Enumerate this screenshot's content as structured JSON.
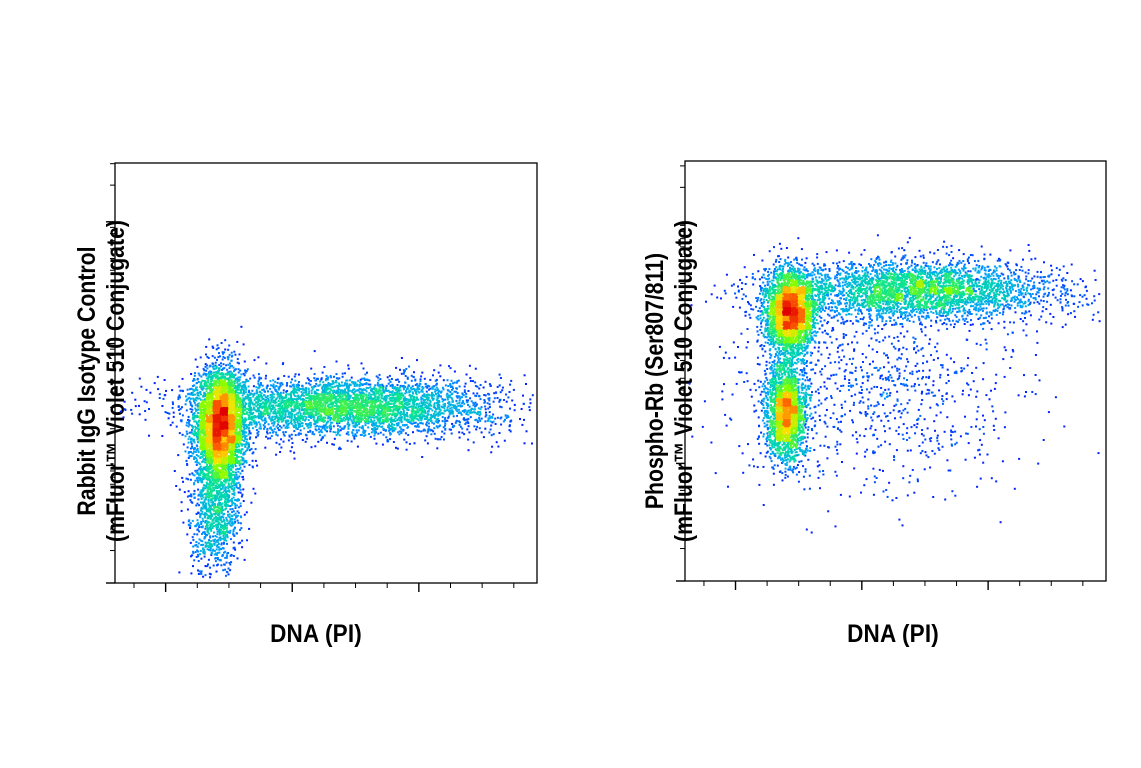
{
  "chart_data": [
    {
      "type": "scatter",
      "title": "",
      "xlabel": "DNA (PI)",
      "ylabel_line1": "Rabbit IgG Isotype Control",
      "ylabel_line2": "(mFluor™ Violet 510 Conjugate)",
      "xlim": [
        0,
        1
      ],
      "ylim": [
        0,
        1
      ],
      "x_major_ticks": [
        0.12,
        0.42,
        0.72
      ],
      "y_major_ticks": [
        0.28,
        0.57,
        0.86
      ],
      "grid": false,
      "density_colormap": [
        "#0000ff",
        "#00a0ff",
        "#00e0a0",
        "#80ff00",
        "#ffe000",
        "#ff6000",
        "#e00000"
      ],
      "populations": [
        {
          "name": "",
          "x_center": 0.25,
          "y_center": 0.37,
          "x_spread": 0.03,
          "y_spread": 0.07,
          "weight": 0.45
        },
        {
          "name": "",
          "x_center": 0.55,
          "y_center": 0.42,
          "x_spread": 0.18,
          "y_spread": 0.035,
          "weight": 0.45
        },
        {
          "name": "",
          "x_center": 0.24,
          "y_center": 0.16,
          "x_spread": 0.03,
          "y_spread": 0.07,
          "weight": 0.1
        }
      ]
    },
    {
      "type": "scatter",
      "title": "",
      "xlabel": "DNA (PI)",
      "ylabel_line1": "Phospho-Rb (Ser807/811)",
      "ylabel_line2": "(mFluor™ Violet 510 Conjugate)",
      "xlim": [
        0,
        1
      ],
      "ylim": [
        0,
        1
      ],
      "x_major_ticks": [
        0.12,
        0.42,
        0.72
      ],
      "y_major_ticks": [
        0.28,
        0.57,
        0.85
      ],
      "grid": false,
      "density_colormap": [
        "#0000ff",
        "#00a0ff",
        "#00e0a0",
        "#80ff00",
        "#ffe000",
        "#ff6000",
        "#e00000"
      ],
      "populations": [
        {
          "name": "",
          "x_center": 0.25,
          "y_center": 0.64,
          "x_spread": 0.03,
          "y_spread": 0.05,
          "weight": 0.3
        },
        {
          "name": "",
          "x_center": 0.24,
          "y_center": 0.4,
          "x_spread": 0.025,
          "y_spread": 0.06,
          "weight": 0.22
        },
        {
          "name": "",
          "x_center": 0.55,
          "y_center": 0.69,
          "x_spread": 0.17,
          "y_spread": 0.035,
          "weight": 0.38
        },
        {
          "name": "",
          "x_center": 0.45,
          "y_center": 0.45,
          "x_spread": 0.17,
          "y_spread": 0.12,
          "weight": 0.1
        }
      ]
    }
  ]
}
